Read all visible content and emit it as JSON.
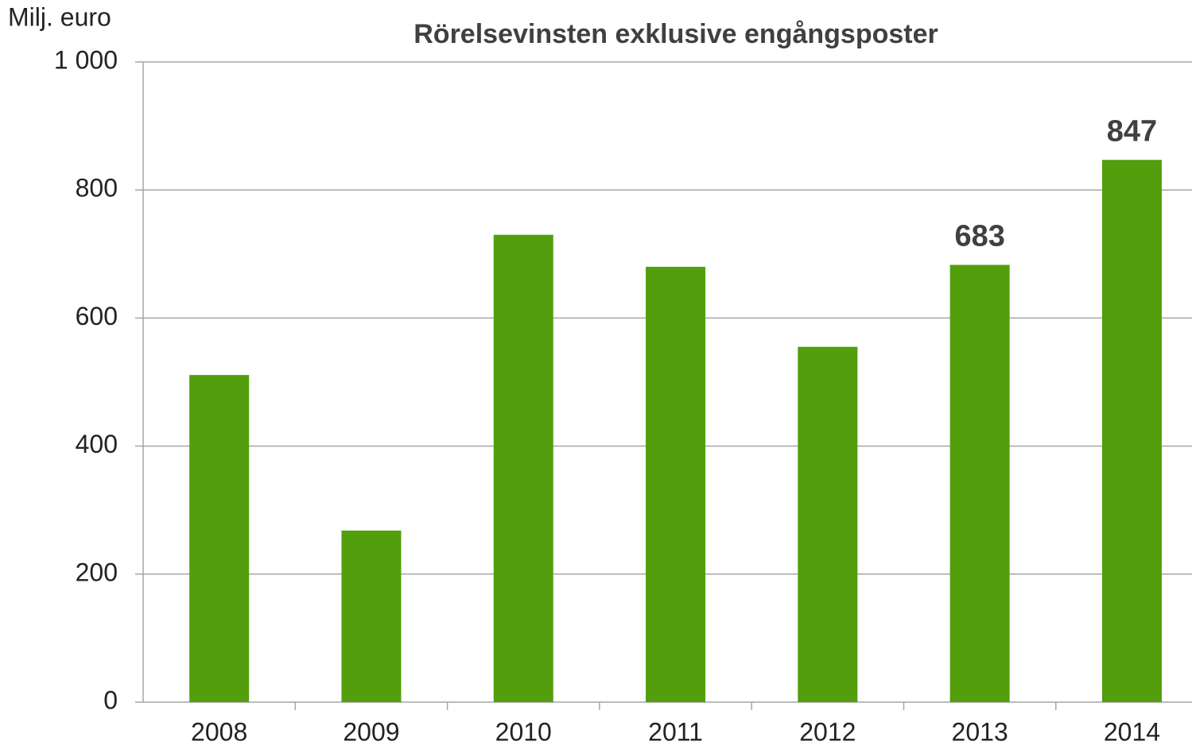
{
  "chart_data": {
    "type": "bar",
    "title": "Rörelsevinsten exklusive engångsposter",
    "y_label": "Milj. euro",
    "categories": [
      "2008",
      "2009",
      "2010",
      "2011",
      "2012",
      "2013",
      "2014"
    ],
    "values": [
      511,
      268,
      730,
      680,
      555,
      683,
      847
    ],
    "value_labels": [
      null,
      null,
      null,
      null,
      null,
      "683",
      "847"
    ],
    "color": "#529e0c",
    "ylim": [
      0,
      1000
    ],
    "yticks": [
      0,
      200,
      400,
      600,
      800,
      {
        "value": 1000,
        "label": "1 000"
      }
    ],
    "grid": true
  }
}
